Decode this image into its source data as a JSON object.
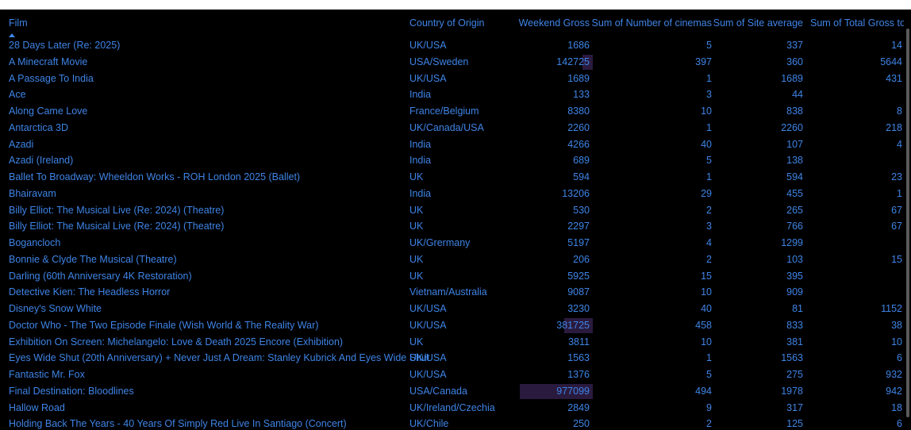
{
  "header": {
    "film": "Film",
    "country": "Country of Origin",
    "gross": "Weekend Gross",
    "cinemas": "Sum of Number of cinemas",
    "siteavg": "Sum of Site average",
    "total": "Sum of Total Gross to"
  },
  "colors": {
    "text": "#3e84e6",
    "bar": "#2a1a3e",
    "background": "#000000"
  },
  "rows": [
    {
      "film": "28 Days Later (Re: 2025)",
      "country": "UK/USA",
      "gross": "1686",
      "cinemas": "5",
      "siteavg": "337",
      "total": "14"
    },
    {
      "film": "A Minecraft Movie",
      "country": "USA/Sweden",
      "gross": "142725",
      "cinemas": "397",
      "siteavg": "360",
      "total": "5644"
    },
    {
      "film": "A Passage To India",
      "country": "UK/USA",
      "gross": "1689",
      "cinemas": "1",
      "siteavg": "1689",
      "total": "431"
    },
    {
      "film": "Ace",
      "country": "India",
      "gross": "133",
      "cinemas": "3",
      "siteavg": "44",
      "total": ""
    },
    {
      "film": "Along Came Love",
      "country": "France/Belgium",
      "gross": "8380",
      "cinemas": "10",
      "siteavg": "838",
      "total": "8"
    },
    {
      "film": "Antarctica 3D",
      "country": "UK/Canada/USA",
      "gross": "2260",
      "cinemas": "1",
      "siteavg": "2260",
      "total": "218"
    },
    {
      "film": "Azadi",
      "country": "India",
      "gross": "4266",
      "cinemas": "40",
      "siteavg": "107",
      "total": "4"
    },
    {
      "film": "Azadi (Ireland)",
      "country": "India",
      "gross": "689",
      "cinemas": "5",
      "siteavg": "138",
      "total": ""
    },
    {
      "film": "Ballet To Broadway: Wheeldon Works - ROH London 2025 (Ballet)",
      "country": "UK",
      "gross": "594",
      "cinemas": "1",
      "siteavg": "594",
      "total": "23"
    },
    {
      "film": "Bhairavam",
      "country": "India",
      "gross": "13206",
      "cinemas": "29",
      "siteavg": "455",
      "total": "1"
    },
    {
      "film": "Billy Elliot: The Musical Live (Re: 2024) (Theatre)",
      "country": "UK",
      "gross": "530",
      "cinemas": "2",
      "siteavg": "265",
      "total": "67"
    },
    {
      "film": "Billy Elliot: The Musical Live (Re: 2024) (Theatre)",
      "country": "UK",
      "gross": "2297",
      "cinemas": "3",
      "siteavg": "766",
      "total": "67"
    },
    {
      "film": "Bogancloch",
      "country": "UK/Grermany",
      "gross": "5197",
      "cinemas": "4",
      "siteavg": "1299",
      "total": ""
    },
    {
      "film": "Bonnie & Clyde The Musical (Theatre)",
      "country": "UK",
      "gross": "206",
      "cinemas": "2",
      "siteavg": "103",
      "total": "15"
    },
    {
      "film": "Darling (60th Anniversary 4K Restoration)",
      "country": "UK",
      "gross": "5925",
      "cinemas": "15",
      "siteavg": "395",
      "total": ""
    },
    {
      "film": "Detective Kien: The Headless Horror",
      "country": "Vietnam/Australia",
      "gross": "9087",
      "cinemas": "10",
      "siteavg": "909",
      "total": ""
    },
    {
      "film": "Disney's Snow White",
      "country": "UK/USA",
      "gross": "3230",
      "cinemas": "40",
      "siteavg": "81",
      "total": "1152"
    },
    {
      "film": "Doctor Who - The Two Episode Finale (Wish World & The Reality War)",
      "country": "UK/USA",
      "gross": "381725",
      "cinemas": "458",
      "siteavg": "833",
      "total": "38"
    },
    {
      "film": "Exhibition On Screen: Michelangelo: Love & Death 2025 Encore (Exhibition)",
      "country": "UK",
      "gross": "3811",
      "cinemas": "10",
      "siteavg": "381",
      "total": "10"
    },
    {
      "film": "Eyes Wide Shut (20th Anniversary) + Never Just A Dream: Stanley Kubrick And Eyes Wide Shut",
      "country": "UK/USA",
      "gross": "1563",
      "cinemas": "1",
      "siteavg": "1563",
      "total": "6"
    },
    {
      "film": "Fantastic Mr. Fox",
      "country": "UK/USA",
      "gross": "1376",
      "cinemas": "5",
      "siteavg": "275",
      "total": "932"
    },
    {
      "film": "Final Destination: Bloodlines",
      "country": "USA/Canada",
      "gross": "977099",
      "cinemas": "494",
      "siteavg": "1978",
      "total": "942"
    },
    {
      "film": "Hallow Road",
      "country": "UK/Ireland/Czechia",
      "gross": "2849",
      "cinemas": "9",
      "siteavg": "317",
      "total": "18"
    },
    {
      "film": "Holding Back The Years - 40 Years Of Simply Red Live In Santiago (Concert)",
      "country": "UK/Chile",
      "gross": "250",
      "cinemas": "2",
      "siteavg": "125",
      "total": "6"
    }
  ]
}
